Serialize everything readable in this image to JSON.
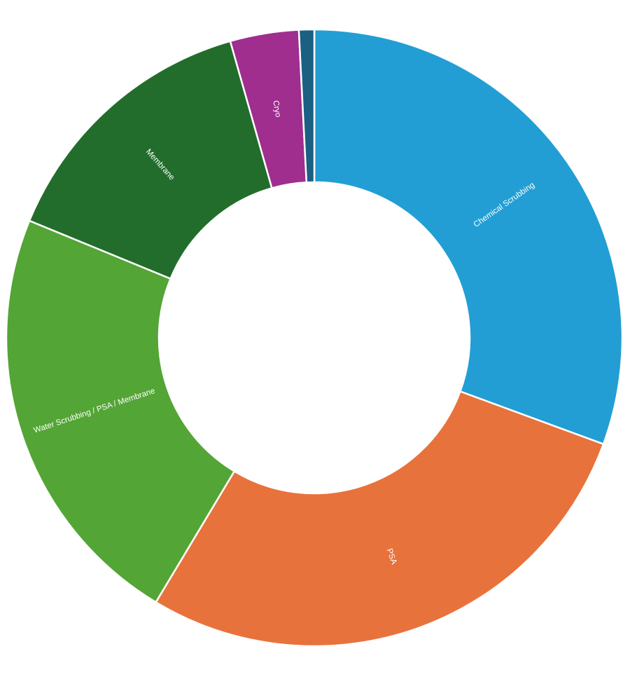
{
  "chart_data": {
    "type": "pie",
    "variant": "donut",
    "title": "",
    "labels": [
      "Chemical Scrubbing",
      "PSA",
      "Water Scrubbing / PSA / Membrane",
      "Membrane",
      "Cryo",
      ""
    ],
    "values": [
      30.6,
      28.0,
      22.6,
      14.4,
      3.6,
      0.8
    ],
    "colors": [
      "#229ED4",
      "#E8723C",
      "#53A535",
      "#226D2B",
      "#9F2E8E",
      "#1B5F83"
    ],
    "legend": "none",
    "start_angle_deg": 0,
    "direction": "clockwise"
  }
}
